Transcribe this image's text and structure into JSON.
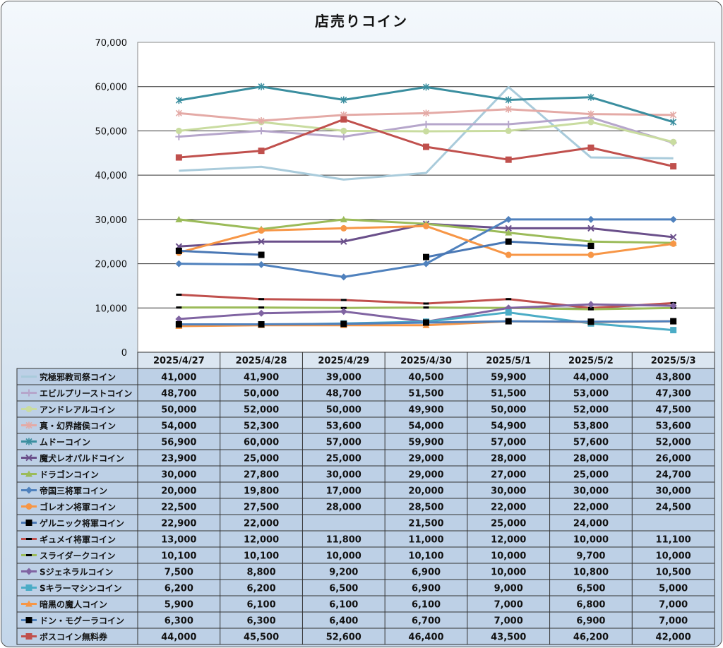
{
  "chart_data": {
    "type": "line",
    "title": "店売りコイン",
    "categories": [
      "2025/4/27",
      "2025/4/28",
      "2025/4/29",
      "2025/4/30",
      "2025/5/1",
      "2025/5/2",
      "2025/5/3"
    ],
    "ylim": [
      0,
      70000
    ],
    "yticks": [
      "0",
      "10,000",
      "20,000",
      "30,000",
      "40,000",
      "50,000",
      "60,000",
      "70,000"
    ],
    "grid": true,
    "legend": "data-table-below",
    "series": [
      {
        "name": "究極邪教司祭コイン",
        "color": "#a9cbdb",
        "marker": "none",
        "values": [
          41000,
          41900,
          39000,
          40500,
          59900,
          44000,
          43800
        ],
        "labels": [
          "41,000",
          "41,900",
          "39,000",
          "40,500",
          "59,900",
          "44,000",
          "43,800"
        ]
      },
      {
        "name": "エビルプリーストコイン",
        "color": "#b6a6cb",
        "marker": "plus",
        "values": [
          48700,
          50000,
          48700,
          51500,
          51500,
          53000,
          47300
        ],
        "labels": [
          "48,700",
          "50,000",
          "48,700",
          "51,500",
          "51,500",
          "53,000",
          "47,300"
        ]
      },
      {
        "name": "アンドレアルコイン",
        "color": "#c9dca0",
        "marker": "circle",
        "values": [
          50000,
          52000,
          50000,
          49900,
          50000,
          52000,
          47500
        ],
        "labels": [
          "50,000",
          "52,000",
          "50,000",
          "49,900",
          "50,000",
          "52,000",
          "47,500"
        ]
      },
      {
        "name": "真・幻界諸侯コイン",
        "color": "#e4aaa6",
        "marker": "star",
        "values": [
          54000,
          52300,
          53600,
          54000,
          54900,
          53800,
          53600
        ],
        "labels": [
          "54,000",
          "52,300",
          "53,600",
          "54,000",
          "54,900",
          "53,800",
          "53,600"
        ]
      },
      {
        "name": "ムドーコイン",
        "color": "#3a8e9f",
        "marker": "star",
        "values": [
          56900,
          60000,
          57000,
          59900,
          57000,
          57600,
          52000
        ],
        "labels": [
          "56,900",
          "60,000",
          "57,000",
          "59,900",
          "57,000",
          "57,600",
          "52,000"
        ]
      },
      {
        "name": "魔犬レオパルドコイン",
        "color": "#6a4f8a",
        "marker": "x",
        "values": [
          23900,
          25000,
          25000,
          29000,
          28000,
          28000,
          26000
        ],
        "labels": [
          "23,900",
          "25,000",
          "25,000",
          "29,000",
          "28,000",
          "28,000",
          "26,000"
        ]
      },
      {
        "name": "ドラゴンコイン",
        "color": "#9bbb59",
        "marker": "triangle",
        "values": [
          30000,
          27800,
          30000,
          29000,
          27000,
          25000,
          24700
        ],
        "labels": [
          "30,000",
          "27,800",
          "30,000",
          "29,000",
          "27,000",
          "25,000",
          "24,700"
        ]
      },
      {
        "name": "帝国三将軍コイン",
        "color": "#4f81bd",
        "marker": "diamond",
        "values": [
          20000,
          19800,
          17000,
          20000,
          30000,
          30000,
          30000
        ],
        "labels": [
          "20,000",
          "19,800",
          "17,000",
          "20,000",
          "30,000",
          "30,000",
          "30,000"
        ]
      },
      {
        "name": "ゴレオン将軍コイン",
        "color": "#f79646",
        "marker": "circle",
        "values": [
          22500,
          27500,
          28000,
          28500,
          22000,
          22000,
          24500
        ],
        "labels": [
          "22,500",
          "27,500",
          "28,000",
          "28,500",
          "22,000",
          "22,000",
          "24,500"
        ]
      },
      {
        "name": "ゲルニック将軍コイン",
        "color": "#4a78b5",
        "marker": "square-black",
        "values": [
          22900,
          22000,
          null,
          21500,
          25000,
          24000,
          null
        ],
        "labels": [
          "22,900",
          "22,000",
          "",
          "21,500",
          "25,000",
          "24,000",
          ""
        ]
      },
      {
        "name": "ギュメイ将軍コイン",
        "color": "#c0504d",
        "marker": "dash",
        "values": [
          13000,
          12000,
          11800,
          11000,
          12000,
          10000,
          11100
        ],
        "labels": [
          "13,000",
          "12,000",
          "11,800",
          "11,000",
          "12,000",
          "10,000",
          "11,100"
        ]
      },
      {
        "name": "スライダークコイン",
        "color": "#9bbb59",
        "marker": "dash",
        "values": [
          10100,
          10100,
          10000,
          10100,
          10000,
          9700,
          10000
        ],
        "labels": [
          "10,100",
          "10,100",
          "10,000",
          "10,100",
          "10,000",
          "9,700",
          "10,000"
        ]
      },
      {
        "name": "Sジェネラルコイン",
        "color": "#8064a2",
        "marker": "diamond",
        "values": [
          7500,
          8800,
          9200,
          6900,
          10000,
          10800,
          10500
        ],
        "labels": [
          "7,500",
          "8,800",
          "9,200",
          "6,900",
          "10,000",
          "10,800",
          "10,500"
        ]
      },
      {
        "name": "Sキラーマシンコイン",
        "color": "#4bacc6",
        "marker": "square",
        "values": [
          6200,
          6200,
          6500,
          6900,
          9000,
          6500,
          5000
        ],
        "labels": [
          "6,200",
          "6,200",
          "6,500",
          "6,900",
          "9,000",
          "6,500",
          "5,000"
        ]
      },
      {
        "name": "暗黒の魔人コイン",
        "color": "#f79646",
        "marker": "triangle",
        "values": [
          5900,
          6100,
          6100,
          6100,
          7000,
          6800,
          7000
        ],
        "labels": [
          "5,900",
          "6,100",
          "6,100",
          "6,100",
          "7,000",
          "6,800",
          "7,000"
        ]
      },
      {
        "name": "ドン・モグーラコイン",
        "color": "#4f81bd",
        "marker": "square-black",
        "values": [
          6300,
          6300,
          6400,
          6700,
          7000,
          6900,
          7000
        ],
        "labels": [
          "6,300",
          "6,300",
          "6,400",
          "6,700",
          "7,000",
          "6,900",
          "7,000"
        ]
      },
      {
        "name": "ボスコイン無料券",
        "color": "#c0504d",
        "marker": "square",
        "values": [
          44000,
          45500,
          52600,
          46400,
          43500,
          46200,
          42000
        ],
        "labels": [
          "44,000",
          "45,500",
          "52,600",
          "46,400",
          "43,500",
          "46,200",
          "42,000"
        ]
      }
    ]
  }
}
